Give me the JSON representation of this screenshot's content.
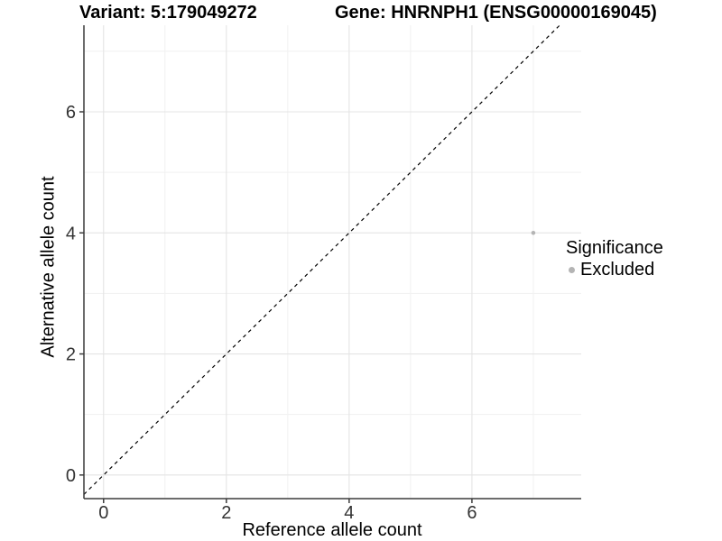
{
  "titles": {
    "variant": "Variant: 5:179049272",
    "gene": "Gene: HNRNPH1 (ENSG00000169045)"
  },
  "chart_data": {
    "type": "scatter",
    "title": "Variant: 5:179049272   Gene: HNRNPH1 (ENSG00000169045)",
    "xlabel": "Reference allele count",
    "ylabel": "Alternative allele count",
    "x_ticks": [
      "0",
      "2",
      "4",
      "6"
    ],
    "y_ticks": [
      "0",
      "2",
      "4",
      "6"
    ],
    "x_tick_values": [
      0,
      2,
      4,
      6
    ],
    "y_tick_values": [
      0,
      2,
      4,
      6
    ],
    "minor_grid_values": [
      1,
      3,
      5,
      7
    ],
    "xlim": [
      -0.32,
      7.78
    ],
    "ylim": [
      -0.39,
      7.43
    ],
    "grid": "on",
    "legend": {
      "title": "Significance",
      "position": "right",
      "items": [
        {
          "label": "Excluded",
          "color": "#b4b4b4"
        }
      ]
    },
    "reference_line": {
      "type": "identity",
      "equation": "y = x",
      "style": "dashed",
      "color": "#000000"
    },
    "series": [
      {
        "name": "Excluded",
        "color": "#b4b4b4",
        "points": [
          {
            "x": 7,
            "y": 4
          }
        ]
      }
    ]
  },
  "colors": {
    "background": "#ffffff",
    "grid_major": "#e4e4e4",
    "grid_minor": "#f1f1f1",
    "axis_line": "#3c3c3c",
    "tick_label": "#333333",
    "point": "#b4b4b4"
  }
}
